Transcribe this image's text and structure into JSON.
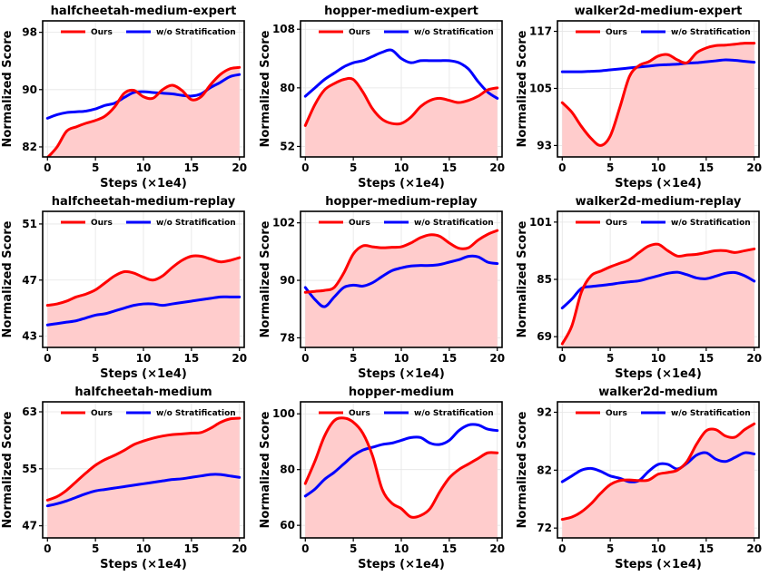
{
  "figure": {
    "xlabel": "Steps (×1e4)",
    "ylabel": "Normalized Score"
  },
  "colors": {
    "ours": "#ff0000",
    "baseline": "#0000ff",
    "fill": "#ffcccc",
    "grid": "#e5e5e5"
  },
  "chart_data": [
    {
      "type": "line",
      "title": "halfcheetah-medium-expert",
      "xlabel": "Steps (×1e4)",
      "ylabel": "Normalized Score",
      "x": [
        0,
        1,
        2,
        3,
        4,
        5,
        6,
        7,
        8,
        9,
        10,
        11,
        12,
        13,
        14,
        15,
        16,
        17,
        18,
        19,
        20
      ],
      "xticks": [
        0,
        5,
        10,
        15,
        20
      ],
      "yticks": [
        82,
        90,
        98
      ],
      "xlim": [
        -0.5,
        20.5
      ],
      "ylim": [
        80.6,
        99.6
      ],
      "grid": true,
      "series": [
        {
          "name": "Ours",
          "values": [
            80.5,
            82.0,
            84.2,
            84.8,
            85.3,
            85.7,
            86.3,
            87.6,
            89.5,
            89.9,
            89.0,
            88.8,
            90.0,
            90.6,
            89.9,
            88.6,
            89.0,
            90.7,
            92.1,
            92.9,
            93.1
          ]
        },
        {
          "name": "w/o Stratification",
          "values": [
            86.0,
            86.5,
            86.8,
            86.9,
            87.0,
            87.3,
            87.8,
            88.1,
            88.9,
            89.6,
            89.7,
            89.6,
            89.5,
            89.4,
            89.2,
            89.1,
            89.4,
            90.3,
            91.0,
            91.8,
            92.1
          ]
        }
      ]
    },
    {
      "type": "line",
      "title": "hopper-medium-expert",
      "xlabel": "Steps (×1e4)",
      "ylabel": "Normalized Score",
      "x": [
        0,
        1,
        2,
        3,
        4,
        5,
        6,
        7,
        8,
        9,
        10,
        11,
        12,
        13,
        14,
        15,
        16,
        17,
        18,
        19,
        20
      ],
      "xticks": [
        0,
        5,
        10,
        15,
        20
      ],
      "yticks": [
        52,
        80,
        108
      ],
      "xlim": [
        -0.5,
        20.5
      ],
      "ylim": [
        47,
        112
      ],
      "grid": true,
      "series": [
        {
          "name": "Ours",
          "values": [
            62,
            72,
            79,
            82,
            84,
            84,
            78,
            70,
            65,
            63,
            63,
            66,
            71,
            74,
            75,
            74,
            73,
            74,
            76,
            79,
            80
          ]
        },
        {
          "name": "w/o Stratification",
          "values": [
            76,
            80,
            84,
            87,
            90,
            92,
            93,
            95,
            97,
            98,
            94,
            92,
            93,
            93,
            93,
            93,
            92,
            89,
            83,
            78,
            75
          ]
        }
      ]
    },
    {
      "type": "line",
      "title": "walker2d-medium-expert",
      "xlabel": "Steps (×1e4)",
      "ylabel": "Normalized Score",
      "x": [
        0,
        1,
        2,
        3,
        4,
        5,
        6,
        7,
        8,
        9,
        10,
        11,
        12,
        13,
        14,
        15,
        16,
        17,
        18,
        19,
        20
      ],
      "xticks": [
        0,
        5,
        10,
        15,
        20
      ],
      "yticks": [
        93,
        105,
        117
      ],
      "xlim": [
        -0.5,
        20.5
      ],
      "ylim": [
        90.6,
        119.2
      ],
      "grid": true,
      "series": [
        {
          "name": "Ours",
          "values": [
            102.0,
            100.0,
            97.0,
            94.5,
            93.0,
            95.0,
            101.0,
            107.5,
            109.8,
            110.6,
            111.8,
            112.1,
            111.0,
            110.4,
            112.5,
            113.5,
            114.0,
            114.1,
            114.3,
            114.5,
            114.5
          ]
        },
        {
          "name": "w/o Stratification",
          "values": [
            108.5,
            108.5,
            108.5,
            108.6,
            108.7,
            108.9,
            109.1,
            109.3,
            109.5,
            109.7,
            109.9,
            110.0,
            110.1,
            110.3,
            110.4,
            110.6,
            110.8,
            111.0,
            110.9,
            110.7,
            110.5
          ]
        }
      ]
    },
    {
      "type": "line",
      "title": "halfcheetah-medium-replay",
      "xlabel": "Steps (×1e4)",
      "ylabel": "Normalized Score",
      "x": [
        0,
        1,
        2,
        3,
        4,
        5,
        6,
        7,
        8,
        9,
        10,
        11,
        12,
        13,
        14,
        15,
        16,
        17,
        18,
        19,
        20
      ],
      "xticks": [
        0,
        5,
        10,
        15,
        20
      ],
      "yticks": [
        43,
        47,
        51
      ],
      "xlim": [
        -0.5,
        20.5
      ],
      "ylim": [
        42.2,
        51.9
      ],
      "grid": true,
      "series": [
        {
          "name": "Ours",
          "values": [
            45.2,
            45.3,
            45.5,
            45.8,
            46.0,
            46.3,
            46.8,
            47.3,
            47.6,
            47.5,
            47.2,
            47.0,
            47.3,
            47.9,
            48.4,
            48.7,
            48.7,
            48.5,
            48.3,
            48.4,
            48.6
          ]
        },
        {
          "name": "w/o Stratification",
          "values": [
            43.8,
            43.9,
            44.0,
            44.1,
            44.3,
            44.5,
            44.6,
            44.8,
            45.0,
            45.2,
            45.3,
            45.3,
            45.2,
            45.3,
            45.4,
            45.5,
            45.6,
            45.7,
            45.8,
            45.8,
            45.8
          ]
        }
      ]
    },
    {
      "type": "line",
      "title": "hopper-medium-replay",
      "xlabel": "Steps (×1e4)",
      "ylabel": "Normalized Score",
      "x": [
        0,
        1,
        2,
        3,
        4,
        5,
        6,
        7,
        8,
        9,
        10,
        11,
        12,
        13,
        14,
        15,
        16,
        17,
        18,
        19,
        20
      ],
      "xticks": [
        0,
        5,
        10,
        15,
        20
      ],
      "yticks": [
        78,
        90,
        102
      ],
      "xlim": [
        -0.5,
        20.5
      ],
      "ylim": [
        76,
        104.4
      ],
      "grid": true,
      "series": [
        {
          "name": "Ours",
          "values": [
            87.5,
            87.7,
            87.9,
            88.5,
            91.5,
            95.5,
            97.2,
            97.0,
            96.8,
            96.9,
            97.0,
            97.8,
            98.9,
            99.5,
            99.2,
            97.8,
            96.7,
            96.8,
            98.4,
            99.6,
            100.4
          ]
        },
        {
          "name": "w/o Stratification",
          "values": [
            88.5,
            86.0,
            84.5,
            86.5,
            88.5,
            89.0,
            88.8,
            89.5,
            90.8,
            92.0,
            92.6,
            93.0,
            93.1,
            93.1,
            93.3,
            93.8,
            94.3,
            95.0,
            94.9,
            93.8,
            93.5
          ]
        }
      ]
    },
    {
      "type": "line",
      "title": "walker2d-medium-replay",
      "xlabel": "Steps (×1e4)",
      "ylabel": "Normalized Score",
      "x": [
        0,
        1,
        2,
        3,
        4,
        5,
        6,
        7,
        8,
        9,
        10,
        11,
        12,
        13,
        14,
        15,
        16,
        17,
        18,
        19,
        20
      ],
      "xticks": [
        0,
        5,
        10,
        15,
        20
      ],
      "yticks": [
        69,
        85,
        101
      ],
      "xlim": [
        -0.5,
        20.5
      ],
      "ylim": [
        66,
        104
      ],
      "grid": true,
      "series": [
        {
          "name": "Ours",
          "values": [
            67.0,
            72.0,
            81.5,
            86.0,
            87.3,
            88.5,
            89.5,
            90.5,
            92.5,
            94.3,
            94.8,
            93.0,
            91.5,
            91.8,
            92.0,
            92.5,
            93.0,
            93.0,
            92.5,
            93.0,
            93.5
          ]
        },
        {
          "name": "w/o Stratification",
          "values": [
            77.0,
            79.5,
            82.5,
            83.0,
            83.3,
            83.6,
            84.0,
            84.3,
            84.6,
            85.3,
            86.0,
            86.7,
            87.0,
            86.3,
            85.4,
            85.2,
            85.9,
            86.7,
            86.9,
            86.0,
            84.5
          ]
        }
      ]
    },
    {
      "type": "line",
      "title": "halfcheetah-medium",
      "xlabel": "Steps (×1e4)",
      "ylabel": "Normalized Score",
      "x": [
        0,
        1,
        2,
        3,
        4,
        5,
        6,
        7,
        8,
        9,
        10,
        11,
        12,
        13,
        14,
        15,
        16,
        17,
        18,
        19,
        20
      ],
      "xticks": [
        0,
        5,
        10,
        15,
        20
      ],
      "yticks": [
        47,
        55,
        63
      ],
      "xlim": [
        -0.5,
        20.5
      ],
      "ylim": [
        45.3,
        64.4
      ],
      "grid": true,
      "series": [
        {
          "name": "Ours",
          "values": [
            50.6,
            51.1,
            52.0,
            53.2,
            54.4,
            55.5,
            56.3,
            56.9,
            57.6,
            58.4,
            58.9,
            59.3,
            59.6,
            59.8,
            59.9,
            60.0,
            60.1,
            60.7,
            61.5,
            62.0,
            62.1
          ]
        },
        {
          "name": "w/o Stratification",
          "values": [
            49.8,
            50.1,
            50.5,
            51.0,
            51.5,
            51.9,
            52.1,
            52.3,
            52.5,
            52.7,
            52.9,
            53.1,
            53.3,
            53.5,
            53.6,
            53.8,
            54.0,
            54.2,
            54.2,
            54.0,
            53.8
          ]
        }
      ]
    },
    {
      "type": "line",
      "title": "hopper-medium",
      "xlabel": "Steps (×1e4)",
      "ylabel": "Normalized Score",
      "x": [
        0,
        1,
        2,
        3,
        4,
        5,
        6,
        7,
        8,
        9,
        10,
        11,
        12,
        13,
        14,
        15,
        16,
        17,
        18,
        19,
        20
      ],
      "xticks": [
        0,
        5,
        10,
        15,
        20
      ],
      "yticks": [
        60,
        80,
        100
      ],
      "xlim": [
        -0.5,
        20.5
      ],
      "ylim": [
        55.5,
        104.3
      ],
      "grid": true,
      "series": [
        {
          "name": "Ours",
          "values": [
            75,
            83,
            92,
            97.5,
            98.5,
            97,
            93,
            85,
            73,
            68,
            66,
            63,
            63.5,
            66,
            72,
            77,
            80,
            82,
            84,
            86,
            86
          ]
        },
        {
          "name": "w/o Stratification",
          "values": [
            70.5,
            73,
            76.5,
            79,
            82,
            85,
            87,
            88,
            89,
            89.5,
            90.5,
            91.5,
            91.5,
            89.5,
            89,
            90.5,
            94,
            96,
            96,
            94.5,
            94
          ]
        }
      ]
    },
    {
      "type": "line",
      "title": "walker2d-medium",
      "xlabel": "Steps (×1e4)",
      "ylabel": "Normalized Score",
      "x": [
        0,
        1,
        2,
        3,
        4,
        5,
        6,
        7,
        8,
        9,
        10,
        11,
        12,
        13,
        14,
        15,
        16,
        17,
        18,
        19,
        20
      ],
      "xticks": [
        0,
        5,
        10,
        15,
        20
      ],
      "yticks": [
        72,
        82,
        92
      ],
      "xlim": [
        -0.5,
        20.5
      ],
      "ylim": [
        70.3,
        93.8
      ],
      "grid": true,
      "series": [
        {
          "name": "Ours",
          "values": [
            73.5,
            73.9,
            74.8,
            76.2,
            78.0,
            79.5,
            80.2,
            80.3,
            80.2,
            80.3,
            81.3,
            81.6,
            82.0,
            83.5,
            86.5,
            88.8,
            89.0,
            87.9,
            87.7,
            89.0,
            90.0
          ]
        },
        {
          "name": "w/o Stratification",
          "values": [
            80.0,
            81.0,
            82.0,
            82.3,
            81.8,
            81.0,
            80.6,
            80.0,
            80.2,
            81.8,
            83.0,
            83.0,
            82.2,
            83.2,
            84.6,
            85.0,
            83.9,
            83.5,
            84.2,
            85.0,
            84.8
          ]
        }
      ]
    }
  ]
}
